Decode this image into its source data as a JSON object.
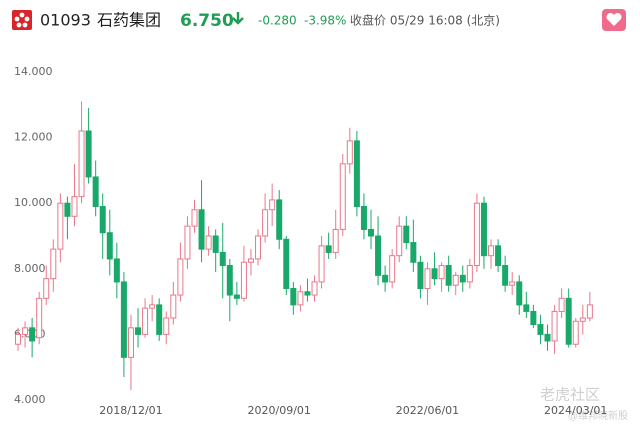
{
  "header": {
    "code": "01093",
    "name": "石药集团",
    "price": "6.750",
    "change": "-0.280",
    "change_pct": "-3.98%",
    "status": "收盘价 05/29 16:08 (北京)"
  },
  "watermark": {
    "brand": "老虎社区",
    "author": "@维邦晓新股"
  },
  "chart_data": {
    "type": "candlestick",
    "up_color": "#e8788a",
    "down_color": "#18a869",
    "grid": false,
    "ylim": [
      4,
      14
    ],
    "yticks": [
      {
        "value": 4,
        "label": "4.000"
      },
      {
        "value": 6,
        "label": "6.000"
      },
      {
        "value": 8,
        "label": "8.000"
      },
      {
        "value": 10,
        "label": "10.000"
      },
      {
        "value": 12,
        "label": "12.000"
      },
      {
        "value": 14,
        "label": "14.000"
      }
    ],
    "categories": [
      null,
      null,
      null,
      null,
      null,
      null,
      null,
      null,
      null,
      null,
      null,
      null,
      null,
      null,
      null,
      null,
      "2018/12/01",
      null,
      null,
      null,
      null,
      null,
      null,
      null,
      null,
      null,
      null,
      null,
      null,
      null,
      null,
      null,
      null,
      null,
      null,
      null,
      null,
      "2020/09/01",
      null,
      null,
      null,
      null,
      null,
      null,
      null,
      null,
      null,
      null,
      null,
      null,
      null,
      null,
      null,
      null,
      null,
      null,
      null,
      null,
      "2022/06/01",
      null,
      null,
      null,
      null,
      null,
      null,
      null,
      null,
      null,
      null,
      null,
      null,
      null,
      null,
      null,
      null,
      null,
      null,
      null,
      null,
      "2024/03/01",
      null,
      null
    ],
    "open": [
      5.7,
      6.0,
      6.2,
      5.9,
      7.1,
      7.7,
      8.6,
      10.0,
      9.6,
      10.2,
      12.2,
      10.8,
      9.9,
      9.1,
      8.3,
      7.6,
      5.3,
      6.2,
      6.0,
      6.8,
      6.9,
      6.0,
      6.5,
      7.2,
      8.3,
      9.3,
      9.8,
      8.6,
      9.0,
      8.5,
      8.1,
      7.2,
      7.1,
      8.2,
      8.3,
      9.0,
      9.8,
      10.1,
      8.9,
      7.4,
      6.9,
      7.3,
      7.2,
      7.6,
      8.7,
      8.5,
      9.2,
      11.2,
      11.9,
      9.9,
      9.2,
      9.0,
      7.8,
      7.6,
      8.4,
      9.3,
      8.8,
      8.2,
      7.4,
      8.0,
      7.7,
      8.1,
      7.5,
      7.8,
      7.6,
      8.1,
      10.0,
      8.4,
      8.7,
      8.1,
      7.5,
      7.6,
      6.9,
      6.7,
      6.3,
      6.0,
      5.8,
      6.7,
      7.1,
      5.7,
      6.4,
      6.5
    ],
    "high": [
      6.2,
      6.4,
      6.5,
      7.3,
      8.1,
      8.9,
      10.3,
      10.2,
      11.2,
      13.1,
      12.9,
      11.3,
      10.3,
      9.8,
      8.8,
      7.9,
      6.6,
      6.8,
      7.1,
      7.2,
      7.1,
      6.7,
      7.6,
      8.8,
      9.6,
      10.1,
      10.7,
      9.3,
      9.2,
      9.4,
      8.3,
      7.6,
      8.7,
      8.6,
      9.2,
      10.3,
      10.6,
      10.4,
      9.0,
      7.6,
      7.5,
      7.7,
      7.8,
      9.0,
      9.1,
      9.8,
      11.5,
      12.3,
      12.2,
      10.3,
      9.8,
      9.6,
      8.1,
      8.6,
      9.6,
      9.6,
      9.5,
      8.4,
      8.2,
      8.5,
      8.2,
      8.4,
      7.9,
      8.1,
      8.3,
      10.3,
      10.2,
      8.9,
      8.9,
      8.4,
      7.9,
      7.8,
      7.3,
      6.9,
      6.6,
      6.3,
      6.9,
      7.4,
      7.4,
      6.5,
      6.9,
      7.3
    ],
    "low": [
      5.5,
      5.6,
      5.3,
      5.7,
      6.9,
      7.3,
      8.2,
      8.9,
      9.3,
      10.0,
      10.6,
      9.6,
      8.3,
      7.8,
      7.1,
      4.7,
      4.3,
      5.6,
      5.9,
      6.4,
      5.8,
      5.7,
      6.3,
      7.0,
      8.0,
      9.1,
      8.2,
      8.4,
      7.9,
      7.1,
      6.4,
      6.9,
      7.0,
      7.8,
      8.1,
      8.8,
      9.3,
      8.6,
      7.2,
      6.6,
      6.7,
      7.0,
      7.0,
      7.4,
      8.3,
      8.3,
      9.0,
      10.9,
      9.6,
      8.9,
      8.6,
      7.5,
      7.3,
      7.4,
      8.2,
      8.6,
      7.9,
      7.1,
      6.9,
      7.5,
      7.3,
      7.3,
      7.2,
      7.3,
      7.4,
      7.9,
      8.0,
      8.0,
      7.9,
      7.3,
      7.2,
      6.6,
      6.5,
      6.2,
      5.7,
      5.5,
      5.4,
      6.5,
      5.6,
      5.6,
      6.0,
      6.4
    ],
    "close": [
      6.0,
      6.2,
      5.8,
      7.1,
      7.7,
      8.6,
      10.0,
      9.6,
      10.2,
      12.2,
      10.8,
      9.9,
      9.1,
      8.3,
      7.6,
      5.3,
      6.2,
      6.0,
      6.8,
      6.9,
      6.0,
      6.5,
      7.2,
      8.3,
      9.3,
      9.8,
      8.6,
      9.0,
      8.5,
      8.1,
      7.2,
      7.1,
      8.2,
      8.3,
      9.0,
      9.8,
      10.1,
      8.9,
      7.4,
      6.9,
      7.3,
      7.2,
      7.6,
      8.7,
      8.5,
      9.2,
      11.2,
      11.9,
      9.9,
      9.2,
      9.0,
      7.8,
      7.6,
      8.4,
      9.3,
      8.8,
      8.2,
      7.4,
      8.0,
      7.7,
      8.1,
      7.5,
      7.8,
      7.6,
      8.1,
      10.0,
      8.4,
      8.7,
      8.1,
      7.5,
      7.6,
      6.9,
      6.7,
      6.3,
      6.0,
      5.8,
      6.7,
      7.1,
      5.7,
      6.4,
      6.5,
      6.9
    ]
  }
}
